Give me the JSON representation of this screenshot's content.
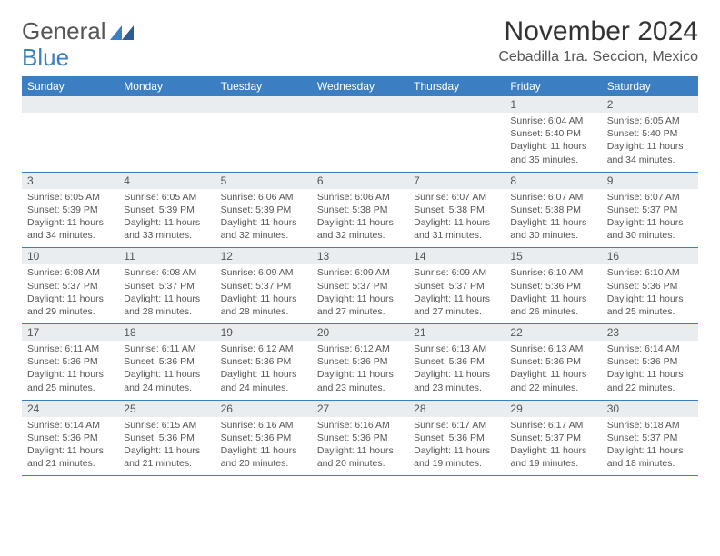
{
  "logo": {
    "text1": "General",
    "text2": "Blue"
  },
  "title": "November 2024",
  "location": "Cebadilla 1ra. Seccion, Mexico",
  "colors": {
    "header_bg": "#3b7ec2",
    "header_text": "#ffffff",
    "daynum_bg": "#e9edf0",
    "text": "#555555",
    "rule": "#3b7ec2",
    "page_bg": "#ffffff"
  },
  "weekdays": [
    "Sunday",
    "Monday",
    "Tuesday",
    "Wednesday",
    "Thursday",
    "Friday",
    "Saturday"
  ],
  "weeks": [
    [
      null,
      null,
      null,
      null,
      null,
      {
        "n": "1",
        "sr": "6:04 AM",
        "ss": "5:40 PM",
        "dl1": "11 hours",
        "dl2": "and 35 minutes."
      },
      {
        "n": "2",
        "sr": "6:05 AM",
        "ss": "5:40 PM",
        "dl1": "11 hours",
        "dl2": "and 34 minutes."
      }
    ],
    [
      {
        "n": "3",
        "sr": "6:05 AM",
        "ss": "5:39 PM",
        "dl1": "11 hours",
        "dl2": "and 34 minutes."
      },
      {
        "n": "4",
        "sr": "6:05 AM",
        "ss": "5:39 PM",
        "dl1": "11 hours",
        "dl2": "and 33 minutes."
      },
      {
        "n": "5",
        "sr": "6:06 AM",
        "ss": "5:39 PM",
        "dl1": "11 hours",
        "dl2": "and 32 minutes."
      },
      {
        "n": "6",
        "sr": "6:06 AM",
        "ss": "5:38 PM",
        "dl1": "11 hours",
        "dl2": "and 32 minutes."
      },
      {
        "n": "7",
        "sr": "6:07 AM",
        "ss": "5:38 PM",
        "dl1": "11 hours",
        "dl2": "and 31 minutes."
      },
      {
        "n": "8",
        "sr": "6:07 AM",
        "ss": "5:38 PM",
        "dl1": "11 hours",
        "dl2": "and 30 minutes."
      },
      {
        "n": "9",
        "sr": "6:07 AM",
        "ss": "5:37 PM",
        "dl1": "11 hours",
        "dl2": "and 30 minutes."
      }
    ],
    [
      {
        "n": "10",
        "sr": "6:08 AM",
        "ss": "5:37 PM",
        "dl1": "11 hours",
        "dl2": "and 29 minutes."
      },
      {
        "n": "11",
        "sr": "6:08 AM",
        "ss": "5:37 PM",
        "dl1": "11 hours",
        "dl2": "and 28 minutes."
      },
      {
        "n": "12",
        "sr": "6:09 AM",
        "ss": "5:37 PM",
        "dl1": "11 hours",
        "dl2": "and 28 minutes."
      },
      {
        "n": "13",
        "sr": "6:09 AM",
        "ss": "5:37 PM",
        "dl1": "11 hours",
        "dl2": "and 27 minutes."
      },
      {
        "n": "14",
        "sr": "6:09 AM",
        "ss": "5:37 PM",
        "dl1": "11 hours",
        "dl2": "and 27 minutes."
      },
      {
        "n": "15",
        "sr": "6:10 AM",
        "ss": "5:36 PM",
        "dl1": "11 hours",
        "dl2": "and 26 minutes."
      },
      {
        "n": "16",
        "sr": "6:10 AM",
        "ss": "5:36 PM",
        "dl1": "11 hours",
        "dl2": "and 25 minutes."
      }
    ],
    [
      {
        "n": "17",
        "sr": "6:11 AM",
        "ss": "5:36 PM",
        "dl1": "11 hours",
        "dl2": "and 25 minutes."
      },
      {
        "n": "18",
        "sr": "6:11 AM",
        "ss": "5:36 PM",
        "dl1": "11 hours",
        "dl2": "and 24 minutes."
      },
      {
        "n": "19",
        "sr": "6:12 AM",
        "ss": "5:36 PM",
        "dl1": "11 hours",
        "dl2": "and 24 minutes."
      },
      {
        "n": "20",
        "sr": "6:12 AM",
        "ss": "5:36 PM",
        "dl1": "11 hours",
        "dl2": "and 23 minutes."
      },
      {
        "n": "21",
        "sr": "6:13 AM",
        "ss": "5:36 PM",
        "dl1": "11 hours",
        "dl2": "and 23 minutes."
      },
      {
        "n": "22",
        "sr": "6:13 AM",
        "ss": "5:36 PM",
        "dl1": "11 hours",
        "dl2": "and 22 minutes."
      },
      {
        "n": "23",
        "sr": "6:14 AM",
        "ss": "5:36 PM",
        "dl1": "11 hours",
        "dl2": "and 22 minutes."
      }
    ],
    [
      {
        "n": "24",
        "sr": "6:14 AM",
        "ss": "5:36 PM",
        "dl1": "11 hours",
        "dl2": "and 21 minutes."
      },
      {
        "n": "25",
        "sr": "6:15 AM",
        "ss": "5:36 PM",
        "dl1": "11 hours",
        "dl2": "and 21 minutes."
      },
      {
        "n": "26",
        "sr": "6:16 AM",
        "ss": "5:36 PM",
        "dl1": "11 hours",
        "dl2": "and 20 minutes."
      },
      {
        "n": "27",
        "sr": "6:16 AM",
        "ss": "5:36 PM",
        "dl1": "11 hours",
        "dl2": "and 20 minutes."
      },
      {
        "n": "28",
        "sr": "6:17 AM",
        "ss": "5:36 PM",
        "dl1": "11 hours",
        "dl2": "and 19 minutes."
      },
      {
        "n": "29",
        "sr": "6:17 AM",
        "ss": "5:37 PM",
        "dl1": "11 hours",
        "dl2": "and 19 minutes."
      },
      {
        "n": "30",
        "sr": "6:18 AM",
        "ss": "5:37 PM",
        "dl1": "11 hours",
        "dl2": "and 18 minutes."
      }
    ]
  ],
  "labels": {
    "sunrise_prefix": "Sunrise: ",
    "sunset_prefix": "Sunset: ",
    "daylight_prefix": "Daylight: "
  }
}
